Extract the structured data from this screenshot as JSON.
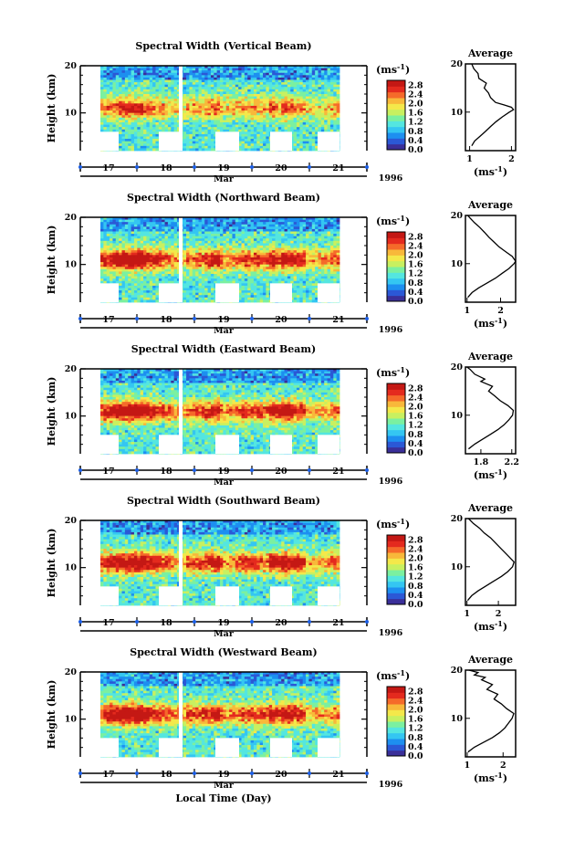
{
  "figure": {
    "xlabel": "Local Time (Day)",
    "year": "1996",
    "month": "Mar",
    "day_labels": [
      "17",
      "18",
      "19",
      "20",
      "21"
    ],
    "colorbar_unit": "(ms",
    "unit_exp": "-1",
    "ylabel": "Height (km)"
  },
  "chart_data": [
    {
      "type": "heatmap",
      "title": "Spectral Width (Vertical Beam)",
      "ylabel": "Height (km)",
      "xlabel": "Mar",
      "x_ticks": [
        "17",
        "18",
        "19",
        "20",
        "21"
      ],
      "y_ticks": [
        10,
        20
      ],
      "ylim": [
        2,
        20
      ],
      "colorbar": {
        "unit": "(ms-1)",
        "ticks": [
          "0.0",
          "0.4",
          "0.8",
          "1.2",
          "1.6",
          "2.0",
          "2.4",
          "2.8"
        ],
        "range": [
          0,
          2.8
        ]
      },
      "colormap": [
        "#3a2f99",
        "#2b58d6",
        "#1d8ff0",
        "#34c6f2",
        "#54e6e0",
        "#7bf0a0",
        "#c8f060",
        "#f4e84a",
        "#f8b83a",
        "#f56a2a",
        "#e42a1e",
        "#c41814"
      ],
      "year": "1996",
      "average_profile": {
        "title": "Average",
        "xlabel": "(ms-1)",
        "x_ticks": [
          "1",
          "2"
        ],
        "xlim": [
          0.9,
          2.1
        ],
        "y_ticks": [
          10,
          20
        ],
        "ylim": [
          2,
          20
        ],
        "points": [
          [
            1.05,
            3
          ],
          [
            1.12,
            4
          ],
          [
            1.25,
            5
          ],
          [
            1.38,
            6
          ],
          [
            1.5,
            7
          ],
          [
            1.63,
            8
          ],
          [
            1.78,
            9
          ],
          [
            1.95,
            10
          ],
          [
            2.05,
            10.5
          ],
          [
            2.0,
            11
          ],
          [
            1.82,
            11.5
          ],
          [
            1.62,
            12
          ],
          [
            1.5,
            13
          ],
          [
            1.45,
            14
          ],
          [
            1.35,
            15
          ],
          [
            1.4,
            16
          ],
          [
            1.22,
            17
          ],
          [
            1.2,
            18
          ],
          [
            1.1,
            19
          ],
          [
            1.05,
            20
          ]
        ]
      }
    },
    {
      "type": "heatmap",
      "title": "Spectral Width (Northward Beam)",
      "ylabel": "Height (km)",
      "xlabel": "Mar",
      "x_ticks": [
        "17",
        "18",
        "19",
        "20",
        "21"
      ],
      "y_ticks": [
        10,
        20
      ],
      "ylim": [
        2,
        20
      ],
      "colorbar": {
        "unit": "(ms-1)",
        "ticks": [
          "0.0",
          "0.4",
          "0.8",
          "1.2",
          "1.6",
          "2.0",
          "2.4",
          "2.8"
        ],
        "range": [
          0,
          2.8
        ]
      },
      "year": "1996",
      "average_profile": {
        "title": "Average",
        "xlabel": "(ms-1)",
        "x_ticks": [
          "1",
          "2"
        ],
        "xlim": [
          0.95,
          2.45
        ],
        "y_ticks": [
          10,
          20
        ],
        "ylim": [
          2,
          20
        ],
        "points": [
          [
            1.02,
            3
          ],
          [
            1.15,
            4
          ],
          [
            1.35,
            5
          ],
          [
            1.6,
            6
          ],
          [
            1.85,
            7
          ],
          [
            2.05,
            8
          ],
          [
            2.25,
            9
          ],
          [
            2.4,
            10
          ],
          [
            2.45,
            10.5
          ],
          [
            2.35,
            11.5
          ],
          [
            2.15,
            12.5
          ],
          [
            1.95,
            13.5
          ],
          [
            1.8,
            14.5
          ],
          [
            1.65,
            15.5
          ],
          [
            1.52,
            16.5
          ],
          [
            1.38,
            17.5
          ],
          [
            1.22,
            18.5
          ],
          [
            1.08,
            19.5
          ],
          [
            1.02,
            20
          ]
        ]
      }
    },
    {
      "type": "heatmap",
      "title": "Spectral Width (Eastward Beam)",
      "ylabel": "Height (km)",
      "xlabel": "Mar",
      "x_ticks": [
        "17",
        "18",
        "19",
        "20",
        "21"
      ],
      "y_ticks": [
        10,
        20
      ],
      "ylim": [
        2,
        20
      ],
      "colorbar": {
        "unit": "(ms-1)",
        "ticks": [
          "0.0",
          "0.4",
          "0.8",
          "1.2",
          "1.6",
          "2.0",
          "2.4",
          "2.8"
        ],
        "range": [
          0,
          2.8
        ]
      },
      "year": "1996",
      "average_profile": {
        "title": "Average",
        "xlabel": "(ms-1)",
        "x_ticks": [
          "1.8",
          "2.2"
        ],
        "xlim": [
          1.6,
          2.25
        ],
        "y_ticks": [
          10,
          20
        ],
        "ylim": [
          2,
          20
        ],
        "points": [
          [
            1.64,
            3
          ],
          [
            1.72,
            4
          ],
          [
            1.82,
            5
          ],
          [
            1.92,
            6
          ],
          [
            2.02,
            7
          ],
          [
            2.1,
            8
          ],
          [
            2.16,
            9
          ],
          [
            2.21,
            10
          ],
          [
            2.22,
            11
          ],
          [
            2.15,
            12
          ],
          [
            2.05,
            13
          ],
          [
            1.98,
            14
          ],
          [
            1.9,
            15
          ],
          [
            1.95,
            16
          ],
          [
            1.8,
            17
          ],
          [
            1.85,
            17.5
          ],
          [
            1.72,
            18.5
          ],
          [
            1.66,
            19.5
          ],
          [
            1.62,
            20
          ]
        ]
      }
    },
    {
      "type": "heatmap",
      "title": "Spectral Width (Southward Beam)",
      "ylabel": "Height (km)",
      "xlabel": "Mar",
      "x_ticks": [
        "17",
        "18",
        "19",
        "20",
        "21"
      ],
      "y_ticks": [
        10,
        20
      ],
      "ylim": [
        2,
        20
      ],
      "colorbar": {
        "unit": "(ms-1)",
        "ticks": [
          "0.0",
          "0.4",
          "0.8",
          "1.2",
          "1.6",
          "2.0",
          "2.4",
          "2.8"
        ],
        "range": [
          0,
          2.8
        ]
      },
      "year": "1996",
      "average_profile": {
        "title": "Average",
        "xlabel": "(ms-1)",
        "x_ticks": [
          "1",
          "2"
        ],
        "xlim": [
          0.95,
          2.55
        ],
        "y_ticks": [
          10,
          20
        ],
        "ylim": [
          2,
          20
        ],
        "points": [
          [
            1.02,
            3
          ],
          [
            1.15,
            4
          ],
          [
            1.35,
            5
          ],
          [
            1.6,
            6
          ],
          [
            1.85,
            7
          ],
          [
            2.1,
            8
          ],
          [
            2.3,
            9
          ],
          [
            2.45,
            10
          ],
          [
            2.5,
            11
          ],
          [
            2.35,
            12
          ],
          [
            2.2,
            13
          ],
          [
            2.05,
            14
          ],
          [
            1.9,
            15
          ],
          [
            1.75,
            16
          ],
          [
            1.55,
            17
          ],
          [
            1.4,
            18
          ],
          [
            1.2,
            19
          ],
          [
            1.05,
            20
          ]
        ]
      }
    },
    {
      "type": "heatmap",
      "title": "Spectral Width (Westward Beam)",
      "ylabel": "Height (km)",
      "xlabel": "Mar",
      "x_ticks": [
        "17",
        "18",
        "19",
        "20",
        "21"
      ],
      "y_ticks": [
        10,
        20
      ],
      "ylim": [
        2,
        20
      ],
      "colorbar": {
        "unit": "(ms-1)",
        "ticks": [
          "0.0",
          "0.4",
          "0.8",
          "1.2",
          "1.6",
          "2.0",
          "2.4",
          "2.8"
        ],
        "range": [
          0,
          2.8
        ]
      },
      "year": "1996",
      "average_profile": {
        "title": "Average",
        "xlabel": "(ms-1)",
        "x_ticks": [
          "1",
          "2"
        ],
        "xlim": [
          0.95,
          2.35
        ],
        "y_ticks": [
          10,
          20
        ],
        "ylim": [
          2,
          20
        ],
        "points": [
          [
            1.02,
            3
          ],
          [
            1.2,
            4
          ],
          [
            1.45,
            5
          ],
          [
            1.7,
            6
          ],
          [
            1.9,
            7
          ],
          [
            2.05,
            8
          ],
          [
            2.15,
            9
          ],
          [
            2.25,
            10
          ],
          [
            2.3,
            11
          ],
          [
            2.1,
            12
          ],
          [
            1.95,
            13
          ],
          [
            1.75,
            14
          ],
          [
            1.85,
            15
          ],
          [
            1.55,
            16
          ],
          [
            1.7,
            17
          ],
          [
            1.4,
            18
          ],
          [
            1.5,
            18.5
          ],
          [
            1.2,
            19
          ],
          [
            1.3,
            19.5
          ],
          [
            1.05,
            20
          ]
        ]
      }
    }
  ]
}
